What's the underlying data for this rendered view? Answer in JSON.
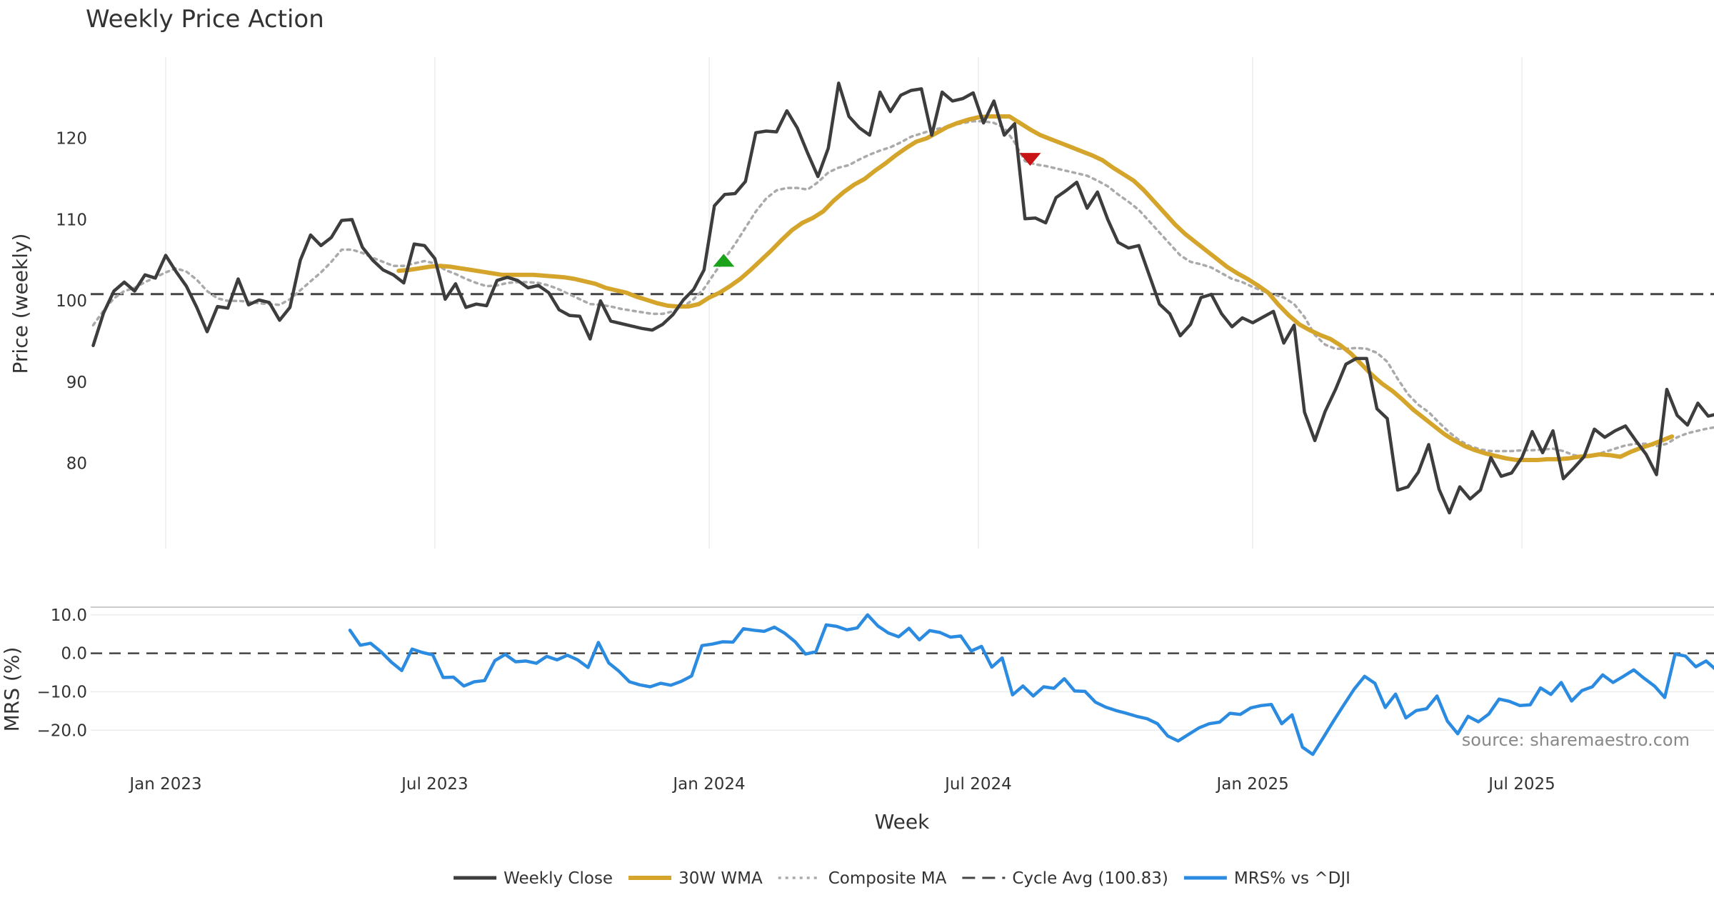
{
  "chart_data": {
    "type": "line",
    "title": "Weekly Price Action",
    "source": "source: sharemaestro.com",
    "colors": {
      "close": "#3d3d3d",
      "wma": "#d4a52a",
      "composite": "#aaaaaa",
      "cycle": "#444444",
      "mrs": "#2b8be0",
      "buy": "#1aa31a",
      "sell": "#c81414"
    },
    "x_axis": {
      "label": "Week",
      "ticks": [
        {
          "label": "Jan 2023",
          "week": 0
        },
        {
          "label": "Jul 2023",
          "week": 26
        },
        {
          "label": "Jan 2024",
          "week": 52.5
        },
        {
          "label": "Jul 2024",
          "week": 78.5
        },
        {
          "label": "Jan 2025",
          "week": 105
        },
        {
          "label": "Jul 2025",
          "week": 131
        }
      ],
      "range": [
        -7,
        148
      ]
    },
    "price_panel": {
      "ylabel": "Price (weekly)",
      "ylim": [
        69.5,
        130
      ],
      "yticks": [
        "80",
        "90",
        "100",
        "110",
        "120"
      ],
      "ytick_values": [
        80,
        90,
        100,
        110,
        120
      ],
      "cycle_avg": 100.83,
      "series": [
        {
          "key": "close",
          "name": "Weekly Close",
          "start_week": -7,
          "values": [
            94.5,
            98.5,
            101.2,
            102.3,
            101.2,
            103.2,
            102.8,
            105.6,
            103.6,
            101.8,
            99.2,
            96.2,
            99.3,
            99.1,
            102.7,
            99.5,
            100.1,
            99.8,
            97.6,
            99.2,
            105.0,
            108.1,
            106.8,
            107.8,
            109.9,
            110.0,
            106.6,
            105.0,
            103.8,
            103.2,
            102.2,
            107.0,
            106.8,
            105.2,
            100.2,
            102.1,
            99.2,
            99.6,
            99.4,
            102.5,
            102.9,
            102.5,
            101.6,
            101.9,
            101.0,
            98.9,
            98.2,
            98.1,
            95.3,
            100.0,
            97.5,
            97.2,
            96.9,
            96.6,
            96.4,
            97.1,
            98.3,
            100.1,
            101.4,
            103.8,
            111.7,
            113.1,
            113.2,
            114.7,
            120.7,
            120.9,
            120.8,
            123.4,
            121.3,
            118.2,
            115.3,
            118.8,
            126.8,
            122.7,
            121.3,
            120.4,
            125.7,
            123.3,
            125.3,
            125.9,
            126.1,
            120.4,
            125.7,
            124.6,
            124.9,
            125.6,
            121.9,
            124.6,
            120.4,
            121.8,
            110.1,
            110.2,
            109.6,
            112.7,
            113.6,
            114.6,
            111.4,
            113.4,
            110.0,
            107.2,
            106.5,
            106.8,
            103.2,
            99.6,
            98.4,
            95.7,
            97.1,
            100.4,
            100.8,
            98.4,
            96.8,
            97.9,
            97.3,
            98.0,
            98.7,
            94.8,
            97.0,
            86.3,
            82.8,
            86.4,
            89.1,
            92.2,
            92.9,
            92.9,
            86.7,
            85.5,
            76.7,
            77.1,
            78.9,
            82.3,
            76.8,
            73.9,
            77.1,
            75.6,
            76.7,
            80.7,
            78.4,
            78.8,
            80.7,
            83.9,
            81.3,
            84.0,
            78.1,
            79.4,
            80.8,
            84.2,
            83.2,
            84.0,
            84.6,
            82.8,
            81.1,
            78.6,
            89.1,
            85.9,
            84.7,
            87.4,
            85.8,
            86.1
          ]
        },
        {
          "key": "wma",
          "name": "30W WMA",
          "start_week": 22.5,
          "values": [
            103.7,
            103.8,
            104.0,
            104.2,
            104.3,
            104.2,
            104.0,
            103.8,
            103.6,
            103.4,
            103.2,
            103.2,
            103.2,
            103.2,
            103.1,
            103.0,
            102.9,
            102.7,
            102.4,
            102.1,
            101.6,
            101.3,
            101.0,
            100.5,
            100.1,
            99.7,
            99.4,
            99.3,
            99.3,
            99.6,
            100.4,
            101.0,
            101.8,
            102.7,
            103.8,
            105.0,
            106.2,
            107.5,
            108.7,
            109.6,
            110.2,
            111.0,
            112.3,
            113.4,
            114.3,
            115.0,
            116.0,
            116.9,
            117.9,
            118.8,
            119.6,
            120.0,
            120.7,
            121.4,
            121.9,
            122.3,
            122.6,
            122.7,
            122.7,
            122.7,
            121.9,
            121.1,
            120.4,
            119.9,
            119.4,
            118.9,
            118.4,
            117.9,
            117.3,
            116.4,
            115.6,
            114.8,
            113.6,
            112.2,
            110.8,
            109.4,
            108.2,
            107.2,
            106.2,
            105.2,
            104.2,
            103.4,
            102.7,
            101.9,
            101.0,
            99.5,
            98.2,
            97.1,
            96.4,
            95.8,
            95.3,
            94.5,
            93.5,
            92.2,
            90.9,
            89.8,
            88.9,
            87.8,
            86.6,
            85.6,
            84.6,
            83.6,
            82.8,
            82.1,
            81.6,
            81.2,
            80.9,
            80.6,
            80.4,
            80.4,
            80.4,
            80.5,
            80.5,
            80.6,
            80.8,
            80.9,
            81.1,
            81.0,
            80.8,
            81.4,
            81.9,
            82.3,
            82.8,
            83.3
          ]
        },
        {
          "key": "composite",
          "name": "Composite MA",
          "start_week": -7,
          "values": [
            97.0,
            98.8,
            100.3,
            101.2,
            101.6,
            102.3,
            102.9,
            103.5,
            104.0,
            103.6,
            102.6,
            101.2,
            100.3,
            100.0,
            100.0,
            99.9,
            99.7,
            99.6,
            99.5,
            100.2,
            101.3,
            102.4,
            103.5,
            104.8,
            106.3,
            106.3,
            105.9,
            105.3,
            104.8,
            104.3,
            104.3,
            104.6,
            104.9,
            104.6,
            103.8,
            103.3,
            102.7,
            102.2,
            101.8,
            101.9,
            102.2,
            102.3,
            102.3,
            102.2,
            101.9,
            101.4,
            100.8,
            100.2,
            99.6,
            99.5,
            99.3,
            99.0,
            98.8,
            98.6,
            98.4,
            98.4,
            98.7,
            99.3,
            100.2,
            101.5,
            103.4,
            105.2,
            107.0,
            109.0,
            111.0,
            112.6,
            113.6,
            113.9,
            113.9,
            113.7,
            114.6,
            115.8,
            116.4,
            116.7,
            117.4,
            118.0,
            118.5,
            118.9,
            119.5,
            120.2,
            120.6,
            121.0,
            121.3,
            121.6,
            121.9,
            122.1,
            122.1,
            121.9,
            121.3,
            119.5,
            117.2,
            116.8,
            116.6,
            116.3,
            116.0,
            115.7,
            115.4,
            114.8,
            114.1,
            113.1,
            112.2,
            111.2,
            109.8,
            108.4,
            107.0,
            105.6,
            104.8,
            104.5,
            104.1,
            103.4,
            102.7,
            102.3,
            101.7,
            101.2,
            100.8,
            100.4,
            99.6,
            98.0,
            95.8,
            94.6,
            94.1,
            94.1,
            94.2,
            94.1,
            93.6,
            92.5,
            90.4,
            88.5,
            87.2,
            86.3,
            85.0,
            83.8,
            82.8,
            82.1,
            81.7,
            81.5,
            81.5,
            81.5,
            81.6,
            81.6,
            81.7,
            81.8,
            81.5,
            81.0,
            80.8,
            81.0,
            81.4,
            81.8,
            82.2,
            82.4,
            82.4,
            82.1,
            82.4,
            83.2,
            83.7,
            84.0,
            84.3,
            84.5
          ]
        }
      ],
      "signals": [
        {
          "type": "buy",
          "week": 53.9,
          "price": 104.9
        },
        {
          "type": "sell",
          "week": 83.5,
          "price": 117.5
        }
      ]
    },
    "mrs_panel": {
      "ylabel": "MRS (%)",
      "ylim": [
        -27,
        12
      ],
      "yticks": [
        "10.0",
        "0.0",
        "−10.0",
        "−20.0"
      ],
      "ytick_values": [
        10,
        0,
        -10,
        -20
      ],
      "reference_line": 0,
      "series": [
        {
          "key": "mrs",
          "name": "MRS% vs ^DJI",
          "start_week": 17.8,
          "values": [
            6.0,
            2.1,
            2.6,
            0.4,
            -2.3,
            -4.5,
            1.1,
            0.2,
            -0.4,
            -6.3,
            -6.2,
            -8.5,
            -7.4,
            -7.1,
            -1.9,
            -0.3,
            -2.2,
            -2.0,
            -2.6,
            -0.8,
            -1.7,
            -0.5,
            -1.7,
            -3.7,
            2.8,
            -2.5,
            -4.7,
            -7.4,
            -8.2,
            -8.7,
            -7.8,
            -8.3,
            -7.3,
            -5.9,
            2.0,
            2.4,
            3.0,
            2.9,
            6.4,
            6.0,
            5.7,
            6.8,
            5.2,
            3.0,
            -0.2,
            0.4,
            7.4,
            7.0,
            6.1,
            6.6,
            10.0,
            7.1,
            5.3,
            4.3,
            6.5,
            3.5,
            5.9,
            5.4,
            4.2,
            4.5,
            0.6,
            1.8,
            -3.6,
            -1.2,
            -10.8,
            -8.5,
            -11.1,
            -8.7,
            -9.1,
            -6.6,
            -9.8,
            -9.9,
            -12.7,
            -14.0,
            -14.9,
            -15.6,
            -16.4,
            -17.0,
            -18.3,
            -21.5,
            -22.8,
            -21.1,
            -19.4,
            -18.3,
            -17.9,
            -15.6,
            -15.9,
            -14.2,
            -13.6,
            -13.3,
            -18.3,
            -16.0,
            -24.4,
            -26.3,
            -22.0,
            -17.6,
            -13.4,
            -9.3,
            -6.0,
            -7.8,
            -14.1,
            -10.6,
            -16.8,
            -14.9,
            -14.4,
            -11.1,
            -17.6,
            -20.9,
            -16.4,
            -17.8,
            -15.8,
            -11.9,
            -12.5,
            -13.6,
            -13.4,
            -9.0,
            -10.7,
            -7.6,
            -12.4,
            -9.7,
            -8.7,
            -5.6,
            -7.6,
            -6.0,
            -4.3,
            -6.5,
            -8.5,
            -11.5,
            -0.2,
            -0.7,
            -3.5,
            -2.0,
            -4.4,
            -2.6
          ]
        }
      ]
    },
    "legend": [
      {
        "key": "close",
        "label": "Weekly Close",
        "style": "solid"
      },
      {
        "key": "wma",
        "label": "30W WMA",
        "style": "solid"
      },
      {
        "key": "composite",
        "label": "Composite MA",
        "style": "dotted"
      },
      {
        "key": "cycle",
        "label": "Cycle Avg (100.83)",
        "style": "dashed"
      },
      {
        "key": "mrs",
        "label": "MRS% vs ^DJI",
        "style": "solid"
      }
    ]
  }
}
